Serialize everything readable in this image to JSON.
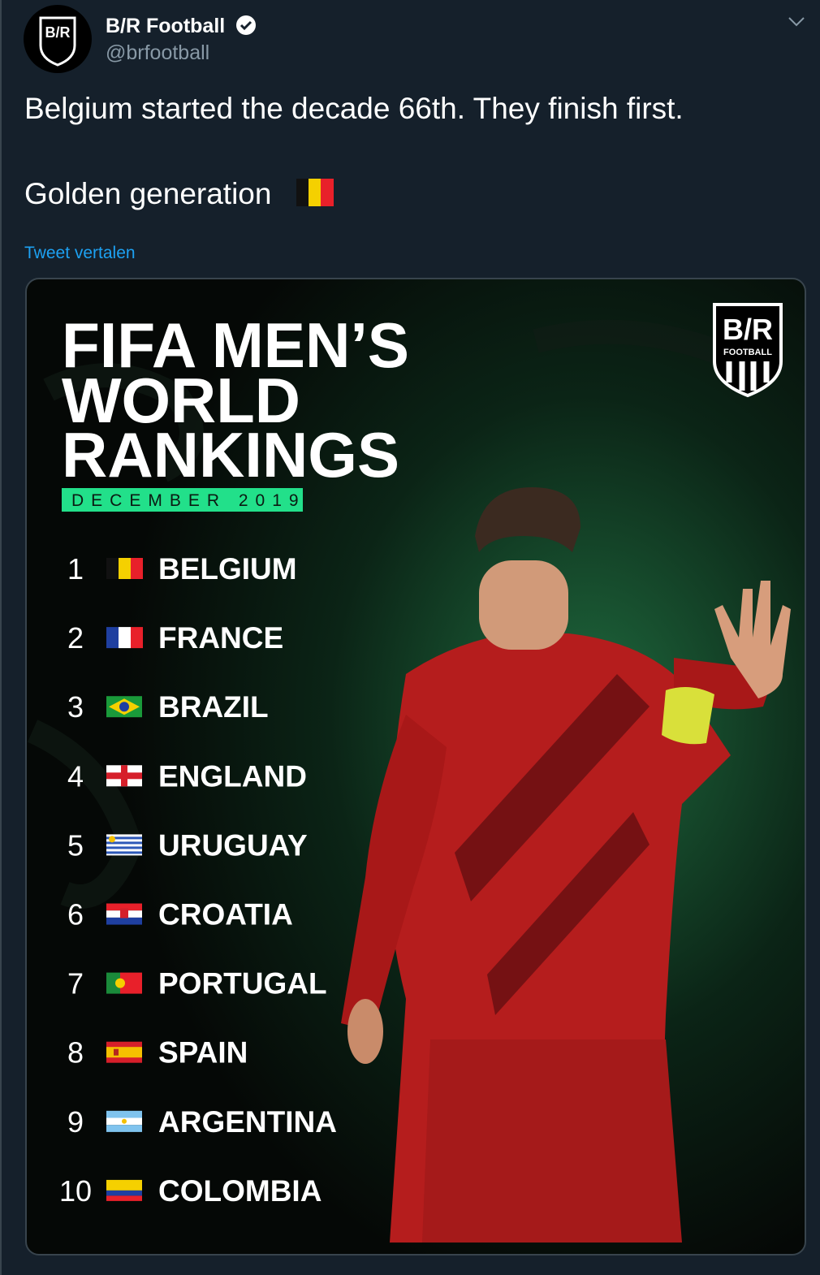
{
  "tweet": {
    "author": {
      "name": "B/R Football",
      "handle": "@brfootball"
    },
    "text": [
      "Belgium started the decade 66th. They finish first.",
      "Golden generation"
    ],
    "translate": "Tweet vertalen"
  },
  "image": {
    "logo": {
      "mark": "B/R",
      "label": "FOOTBALL"
    },
    "title": [
      "FIFA MEN’S",
      "WORLD",
      "RANKINGS"
    ],
    "subtitle": "DECEMBER 2019",
    "rankings": [
      {
        "rank": 1,
        "country": "BELGIUM"
      },
      {
        "rank": 2,
        "country": "FRANCE"
      },
      {
        "rank": 3,
        "country": "BRAZIL"
      },
      {
        "rank": 4,
        "country": "ENGLAND"
      },
      {
        "rank": 5,
        "country": "URUGUAY"
      },
      {
        "rank": 6,
        "country": "CROATIA"
      },
      {
        "rank": 7,
        "country": "PORTUGAL"
      },
      {
        "rank": 8,
        "country": "SPAIN"
      },
      {
        "rank": 9,
        "country": "ARGENTINA"
      },
      {
        "rank": 10,
        "country": "COLOMBIA"
      }
    ]
  }
}
